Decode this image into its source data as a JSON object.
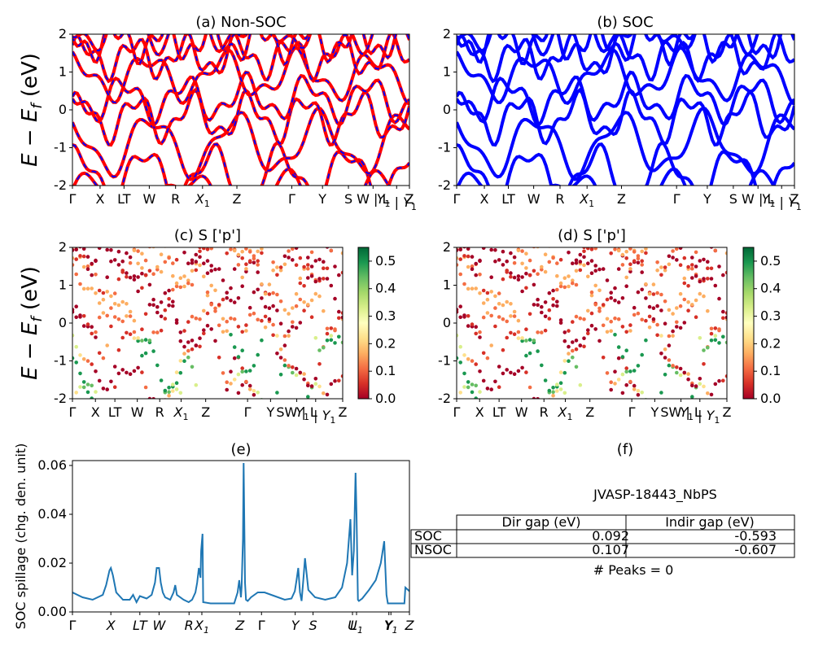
{
  "figure": {
    "ylabel_main": "E − E",
    "ylabel_sub": "f",
    "ylabel_unit": " (eV)"
  },
  "chart_data": [
    {
      "id": "a",
      "type": "line",
      "title": "(a) Non-SOC",
      "ylim": [
        -2,
        2
      ],
      "yticks": [
        -2,
        -1,
        0,
        1,
        2
      ],
      "xticks": [
        "Γ",
        "X",
        "LT",
        "W",
        "R",
        "X1",
        "Z",
        "Γ",
        "Y",
        "S",
        "W | L",
        "Y1 | Y1",
        "Z"
      ],
      "xtick_pos": [
        0,
        0.082,
        0.153,
        0.228,
        0.306,
        0.386,
        0.488,
        0.651,
        0.742,
        0.819,
        0.892,
        0.962,
        1.0
      ],
      "series_colors": [
        "#ff0000",
        "#0000ff"
      ],
      "series_styles": [
        "solid",
        "dashed"
      ]
    },
    {
      "id": "b",
      "type": "line",
      "title": "(b) SOC",
      "ylim": [
        -2,
        2
      ],
      "yticks": [
        -2,
        -1,
        0,
        1,
        2
      ],
      "xticks": [
        "Γ",
        "X",
        "LT",
        "W",
        "R",
        "X1",
        "Z",
        "Γ",
        "Y",
        "S",
        "W | L",
        "Y1 | Y1",
        "Z"
      ],
      "xtick_pos": [
        0,
        0.082,
        0.153,
        0.228,
        0.306,
        0.386,
        0.488,
        0.651,
        0.742,
        0.819,
        0.892,
        0.962,
        1.0
      ],
      "series_colors": [
        "#0000ff"
      ]
    },
    {
      "id": "c",
      "type": "scatter",
      "title": "(c)  S ['p']",
      "ylim": [
        -2,
        2
      ],
      "yticks": [
        -2,
        -1,
        0,
        1,
        2
      ],
      "xticks": [
        "Γ",
        "X",
        "LT",
        "W",
        "R",
        "X1",
        "Z",
        "Γ",
        "Y",
        "SW | L",
        "Y1 | Y1",
        "Z"
      ],
      "xtick_pos": [
        0,
        0.085,
        0.157,
        0.24,
        0.323,
        0.402,
        0.493,
        0.648,
        0.733,
        0.83,
        0.9,
        1.0
      ],
      "colorbar": {
        "min": 0.0,
        "max": 0.55,
        "ticks": [
          "0.0",
          "0.1",
          "0.2",
          "0.3",
          "0.4",
          "0.5"
        ]
      }
    },
    {
      "id": "d",
      "type": "scatter",
      "title": "(d) S ['p']",
      "ylim": [
        -2,
        2
      ],
      "yticks": [
        -2,
        -1,
        0,
        1,
        2
      ],
      "xticks": [
        "Γ",
        "X",
        "LT",
        "W",
        "R",
        "X1",
        "Z",
        "Γ",
        "Y",
        "SW | L",
        "Y1 | Y1",
        "Z"
      ],
      "xtick_pos": [
        0,
        0.085,
        0.157,
        0.24,
        0.323,
        0.402,
        0.493,
        0.648,
        0.733,
        0.83,
        0.9,
        1.0
      ],
      "colorbar": {
        "min": 0.0,
        "max": 0.55,
        "ticks": [
          "0.0",
          "0.1",
          "0.2",
          "0.3",
          "0.4",
          "0.5"
        ]
      }
    },
    {
      "id": "e",
      "type": "line",
      "title": "(e)",
      "ylabel": "SOC spillage (chg. den. unit)",
      "ylim": [
        0,
        0.062
      ],
      "yticks": [
        0.0,
        0.02,
        0.04,
        0.06
      ],
      "ytick_labels": [
        "0.00",
        "0.02",
        "0.04",
        "0.06"
      ],
      "xticks": [
        "Γ",
        "X",
        "LT",
        "W",
        "R",
        "X1",
        "Z",
        "Γ",
        "Y",
        "S",
        "U",
        "L1",
        "Y",
        "Y1",
        "Z"
      ],
      "xtick_pos": [
        0,
        0.114,
        0.2,
        0.257,
        0.346,
        0.384,
        0.497,
        0.561,
        0.661,
        0.714,
        0.831,
        0.843,
        0.939,
        0.945,
        1.0
      ],
      "x": [
        0,
        0.03,
        0.06,
        0.09,
        0.1,
        0.11,
        0.114,
        0.12,
        0.13,
        0.15,
        0.17,
        0.18,
        0.19,
        0.2,
        0.22,
        0.235,
        0.245,
        0.25,
        0.257,
        0.262,
        0.268,
        0.275,
        0.29,
        0.3,
        0.305,
        0.31,
        0.33,
        0.345,
        0.355,
        0.365,
        0.37,
        0.375,
        0.38,
        0.382,
        0.386,
        0.388,
        0.41,
        0.45,
        0.48,
        0.49,
        0.495,
        0.5,
        0.502,
        0.506,
        0.508,
        0.512,
        0.515,
        0.52,
        0.53,
        0.55,
        0.57,
        0.6,
        0.63,
        0.65,
        0.66,
        0.665,
        0.67,
        0.675,
        0.68,
        0.685,
        0.69,
        0.7,
        0.72,
        0.75,
        0.78,
        0.8,
        0.815,
        0.825,
        0.83,
        0.835,
        0.84,
        0.843,
        0.847,
        0.85,
        0.86,
        0.88,
        0.9,
        0.915,
        0.925,
        0.932,
        0.936,
        0.94,
        0.945,
        0.96,
        0.985,
        0.988,
        1.0
      ],
      "values": [
        0.008,
        0.006,
        0.005,
        0.007,
        0.011,
        0.017,
        0.018,
        0.015,
        0.008,
        0.005,
        0.005,
        0.007,
        0.004,
        0.0065,
        0.0055,
        0.007,
        0.012,
        0.018,
        0.018,
        0.012,
        0.008,
        0.006,
        0.005,
        0.008,
        0.011,
        0.007,
        0.005,
        0.004,
        0.005,
        0.008,
        0.012,
        0.018,
        0.014,
        0.025,
        0.032,
        0.004,
        0.0035,
        0.0035,
        0.0035,
        0.008,
        0.013,
        0.006,
        0.01,
        0.03,
        0.061,
        0.012,
        0.005,
        0.0045,
        0.006,
        0.008,
        0.008,
        0.0065,
        0.005,
        0.0055,
        0.0085,
        0.013,
        0.018,
        0.008,
        0.0045,
        0.013,
        0.022,
        0.009,
        0.006,
        0.005,
        0.006,
        0.01,
        0.02,
        0.038,
        0.015,
        0.025,
        0.057,
        0.04,
        0.005,
        0.0045,
        0.0055,
        0.009,
        0.013,
        0.02,
        0.029,
        0.007,
        0.0035,
        0.0035,
        0.0035,
        0.0035,
        0.0035,
        0.01,
        0.0085
      ],
      "line_color": "#1f77b4"
    }
  ],
  "panel_f": {
    "title": "(f)",
    "subtitle": "JVASP-18443_NbPS",
    "table": {
      "headers": [
        "Dir gap (eV)",
        "Indir gap (eV)"
      ],
      "rows": [
        {
          "label": "SOC",
          "dir": "0.092",
          "indir": "-0.593"
        },
        {
          "label": "NSOC",
          "dir": "0.107",
          "indir": "-0.607"
        }
      ]
    },
    "footer": "# Peaks = 0"
  }
}
